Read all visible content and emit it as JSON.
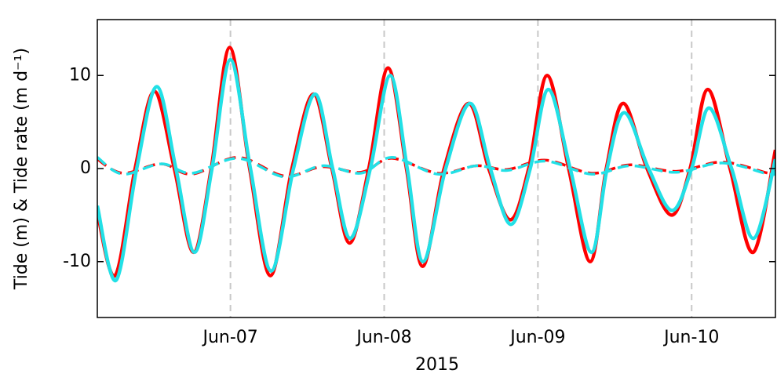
{
  "chart_data": {
    "type": "line",
    "xlabel": "2015",
    "ylabel": "Tide (m) & Tide rate (m d⁻¹)",
    "xlim": [
      6.134,
      10.545
    ],
    "ylim": [
      -16,
      16
    ],
    "xticks": [
      {
        "value": 7,
        "label": "Jun-07"
      },
      {
        "value": 8,
        "label": "Jun-08"
      },
      {
        "value": 9,
        "label": "Jun-09"
      },
      {
        "value": 10,
        "label": "Jun-10"
      }
    ],
    "yticks": [
      -10,
      0,
      10
    ],
    "grid": "x",
    "series": [
      {
        "color": "#ff0000",
        "linestyle": "solid",
        "x": [
          6.134,
          6.25,
          6.38,
          6.505,
          6.635,
          6.76,
          6.875,
          6.995,
          7.125,
          7.26,
          7.4,
          7.54,
          7.66,
          7.775,
          7.9,
          8.025,
          8.145,
          8.25,
          8.39,
          8.55,
          8.68,
          8.82,
          8.94,
          9.06,
          9.2,
          9.34,
          9.445,
          9.555,
          9.71,
          9.87,
          9.99,
          10.105,
          10.25,
          10.4,
          10.545
        ],
        "values": [
          -4.7,
          -11.5,
          0,
          8.3,
          0,
          -9,
          0,
          13,
          0,
          -11.5,
          0,
          8,
          0,
          -8,
          0,
          10.8,
          0,
          -10.5,
          0,
          7,
          0,
          -5.5,
          0,
          10,
          0,
          -10,
          0,
          7,
          0,
          -5,
          0,
          8.5,
          0,
          -9,
          2
        ]
      },
      {
        "color": "#ff0000",
        "linestyle": "dashed",
        "x": [
          6.134,
          6.3,
          6.55,
          6.75,
          7.05,
          7.35,
          7.6,
          7.85,
          8.05,
          8.35,
          8.6,
          8.8,
          9.05,
          9.35,
          9.6,
          9.9,
          10.2,
          10.5,
          10.545
        ],
        "values": [
          1,
          -0.5,
          0.5,
          -0.6,
          1.2,
          -0.8,
          0.2,
          -0.4,
          1.1,
          -0.5,
          0.3,
          -0.1,
          0.9,
          -0.5,
          0.4,
          -0.3,
          0.7,
          -0.5,
          -0.3
        ]
      },
      {
        "color": "#22e0e6",
        "linestyle": "solid",
        "x": [
          6.134,
          6.256,
          6.39,
          6.521,
          6.645,
          6.766,
          6.88,
          7.0,
          7.13,
          7.265,
          7.41,
          7.55,
          7.665,
          7.779,
          7.91,
          8.039,
          8.15,
          8.253,
          8.4,
          8.559,
          8.69,
          8.824,
          8.95,
          9.068,
          9.21,
          9.348,
          9.45,
          9.562,
          9.72,
          9.873,
          10.0,
          10.113,
          10.26,
          10.403,
          10.545
        ],
        "values": [
          -4,
          -12,
          0,
          8.8,
          0,
          -9,
          0,
          11.7,
          0,
          -11,
          0,
          8,
          0,
          -7.5,
          0,
          10,
          0,
          -10,
          0,
          7,
          0,
          -6,
          0,
          8.5,
          0,
          -9,
          0,
          6,
          0,
          -4.5,
          0,
          6.5,
          0,
          -7.5,
          1
        ]
      },
      {
        "color": "#22e0e6",
        "linestyle": "dashed",
        "x": [
          6.134,
          6.3,
          6.55,
          6.75,
          7.05,
          7.35,
          7.6,
          7.85,
          8.05,
          8.35,
          8.6,
          8.8,
          9.05,
          9.35,
          9.6,
          9.9,
          10.2,
          10.5,
          10.545
        ],
        "values": [
          1.2,
          -0.6,
          0.5,
          -0.5,
          1.1,
          -0.9,
          0.3,
          -0.5,
          1.2,
          -0.6,
          0.3,
          -0.2,
          0.8,
          -0.6,
          0.3,
          -0.4,
          0.6,
          -0.6,
          -0.4
        ]
      }
    ]
  }
}
